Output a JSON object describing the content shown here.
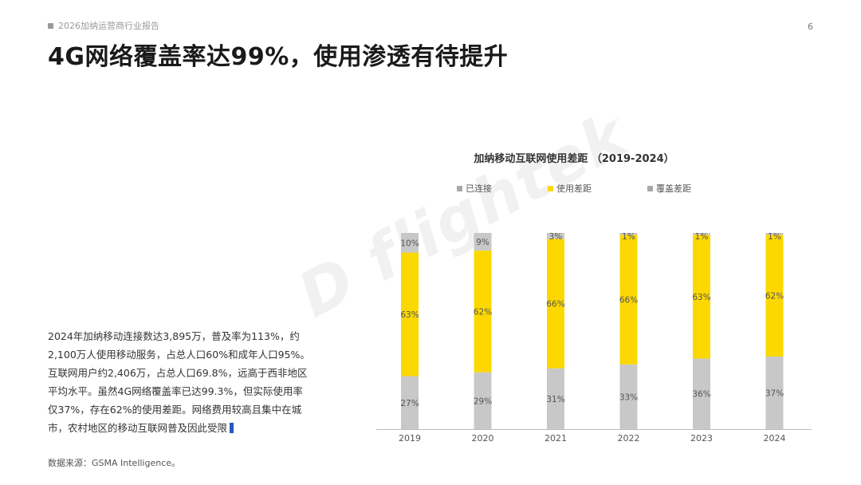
{
  "header": {
    "tag": "2026加纳运营商行业报告",
    "page_number": "6"
  },
  "title": "4G网络覆盖率达99%，使用渗透有待提升",
  "body_text": "2024年加纳移动连接数达3,895万，普及率为113%，约2,100万人使用移动服务，占总人口60%和成年人口95%。互联网用户约2,406万，占总人口69.8%，远高于西非地区平均水平。虽然4G网络覆盖率已达99.3%，但实际使用率仅37%，存在62%的使用差距。网络费用较高且集中在城市，农村地区的移动互联网普及因此受限",
  "source": "数据来源：GSMA Intelligence。",
  "watermark": "D flightek",
  "colors": {
    "connected": "#c8c8c8",
    "usage_gap": "#fcd800",
    "coverage_gap": "#c8c8c8"
  },
  "chart_data": {
    "type": "bar",
    "stacked": true,
    "title": "加纳移动互联网使用差距 （2019-2024）",
    "categories": [
      "2019",
      "2020",
      "2021",
      "2022",
      "2023",
      "2024"
    ],
    "series": [
      {
        "name": "已连接",
        "values": [
          27,
          29,
          31,
          33,
          36,
          37
        ],
        "labels": [
          "27%",
          "29%",
          "31%",
          "33%",
          "36%",
          "37%"
        ]
      },
      {
        "name": "使用差距",
        "values": [
          63,
          62,
          66,
          66,
          63,
          62
        ],
        "labels": [
          "63%",
          "62%",
          "66%",
          "66%",
          "63%",
          "62%"
        ]
      },
      {
        "name": "覆盖差距",
        "values": [
          10,
          9,
          3,
          1,
          1,
          1
        ],
        "labels": [
          "10%",
          "9%",
          "3%",
          "1%",
          "1%",
          "1%"
        ]
      }
    ],
    "ylim": [
      0,
      100
    ],
    "legend": "top",
    "grid": false
  }
}
